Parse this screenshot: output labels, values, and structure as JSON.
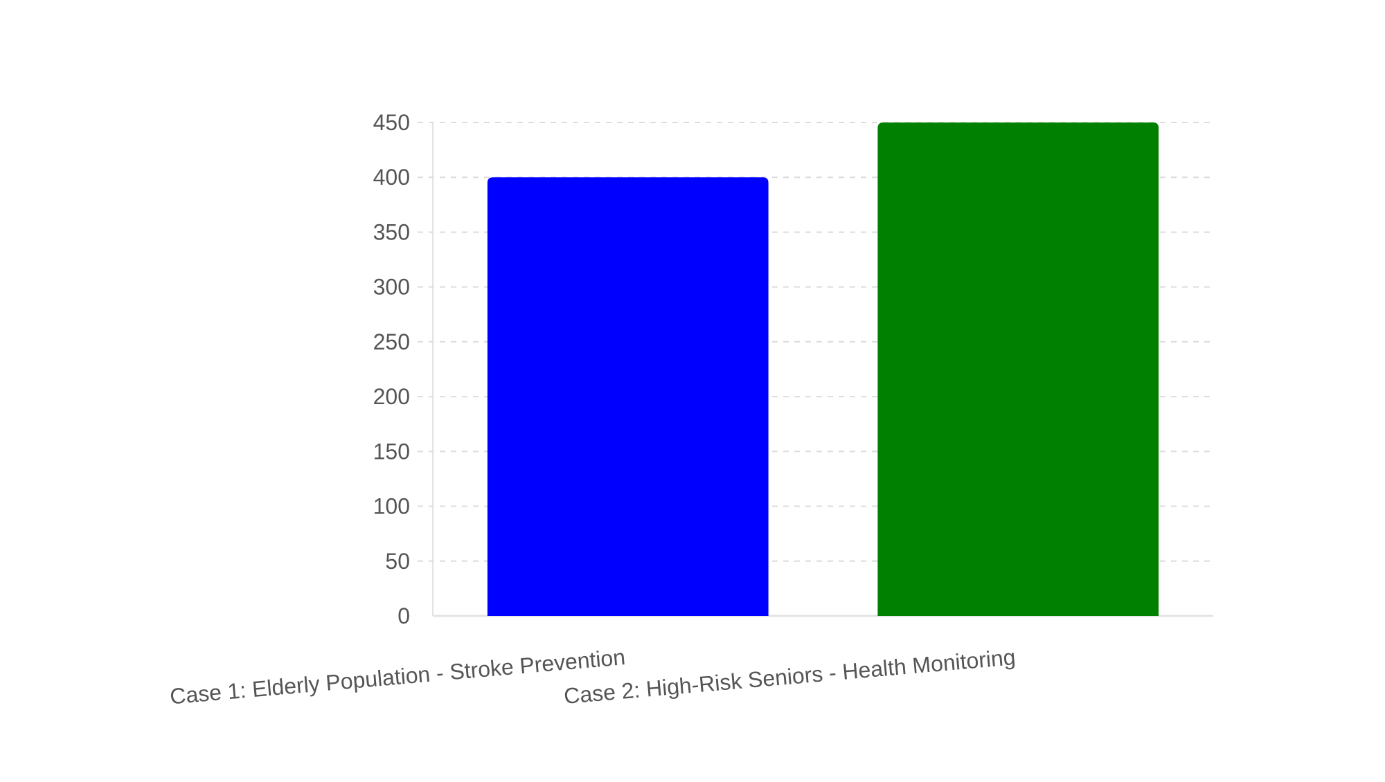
{
  "chart_data": {
    "type": "bar",
    "title": "",
    "xlabel": "",
    "ylabel": "",
    "categories": [
      "Case 1: Elderly Population - Stroke Prevention",
      "Case 2: High-Risk Seniors - Health Monitoring"
    ],
    "values": [
      400,
      450
    ],
    "colors": [
      "#0000ff",
      "#008000"
    ],
    "ylim": [
      0,
      450
    ],
    "yticks": [
      0,
      50,
      100,
      150,
      200,
      250,
      300,
      350,
      400,
      450
    ],
    "grid": true,
    "legend": "none"
  }
}
